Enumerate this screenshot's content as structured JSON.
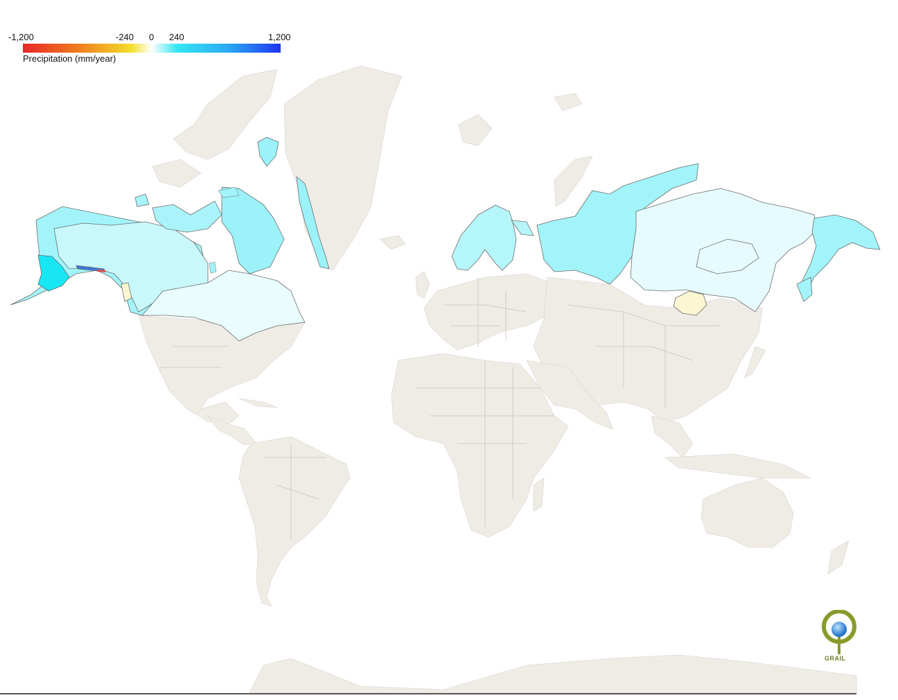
{
  "legend": {
    "ticks": [
      "-1,200",
      "-240",
      "0",
      "240",
      "1,200"
    ],
    "title": "Precipitation (mm/year)",
    "gradient_colors": [
      "#e8262a",
      "#f07f1e",
      "#f3df2c",
      "#ffffff",
      "#33e6f2",
      "#2aa8f5",
      "#1f34ef"
    ]
  },
  "colors": {
    "ocean": "#ffffff",
    "land": "#efece6",
    "border": "#cdbfc3",
    "coast": "#6b6b6b",
    "light_cyan": "#e6fbfd",
    "mid_cyan": "#bff6fb",
    "cyan": "#8ff0f8",
    "strong_cyan": "#14e8f4",
    "pale_yellow": "#fcf7d2",
    "blue": "#3a76d8",
    "red": "#e05050"
  },
  "logo": {
    "label": "GRAIL"
  }
}
